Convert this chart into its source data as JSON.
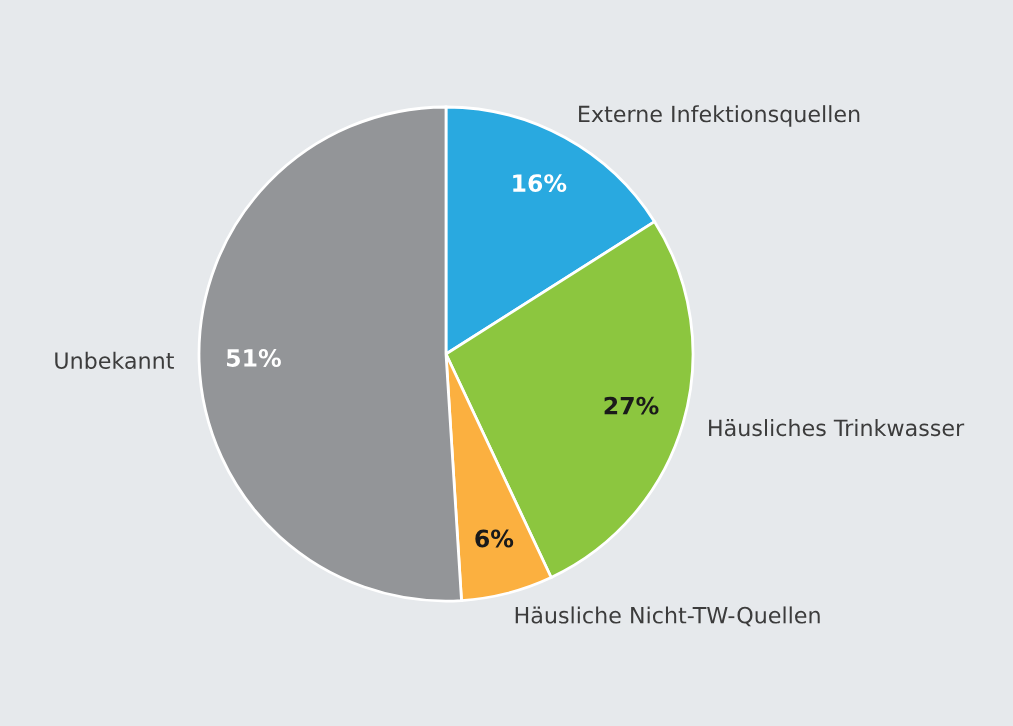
{
  "chart_data": {
    "type": "pie",
    "categories": [
      "Externe Infektionsquellen",
      "Häusliches Trinkwasser",
      "Häusliche Nicht-TW-Quellen",
      "Unbekannt"
    ],
    "values": [
      16,
      27,
      6,
      51
    ],
    "colors": [
      "#29a9e0",
      "#8cc63f",
      "#fbb040",
      "#939598"
    ],
    "value_labels": [
      "16%",
      "27%",
      "6%",
      "51%"
    ],
    "legend": false
  }
}
